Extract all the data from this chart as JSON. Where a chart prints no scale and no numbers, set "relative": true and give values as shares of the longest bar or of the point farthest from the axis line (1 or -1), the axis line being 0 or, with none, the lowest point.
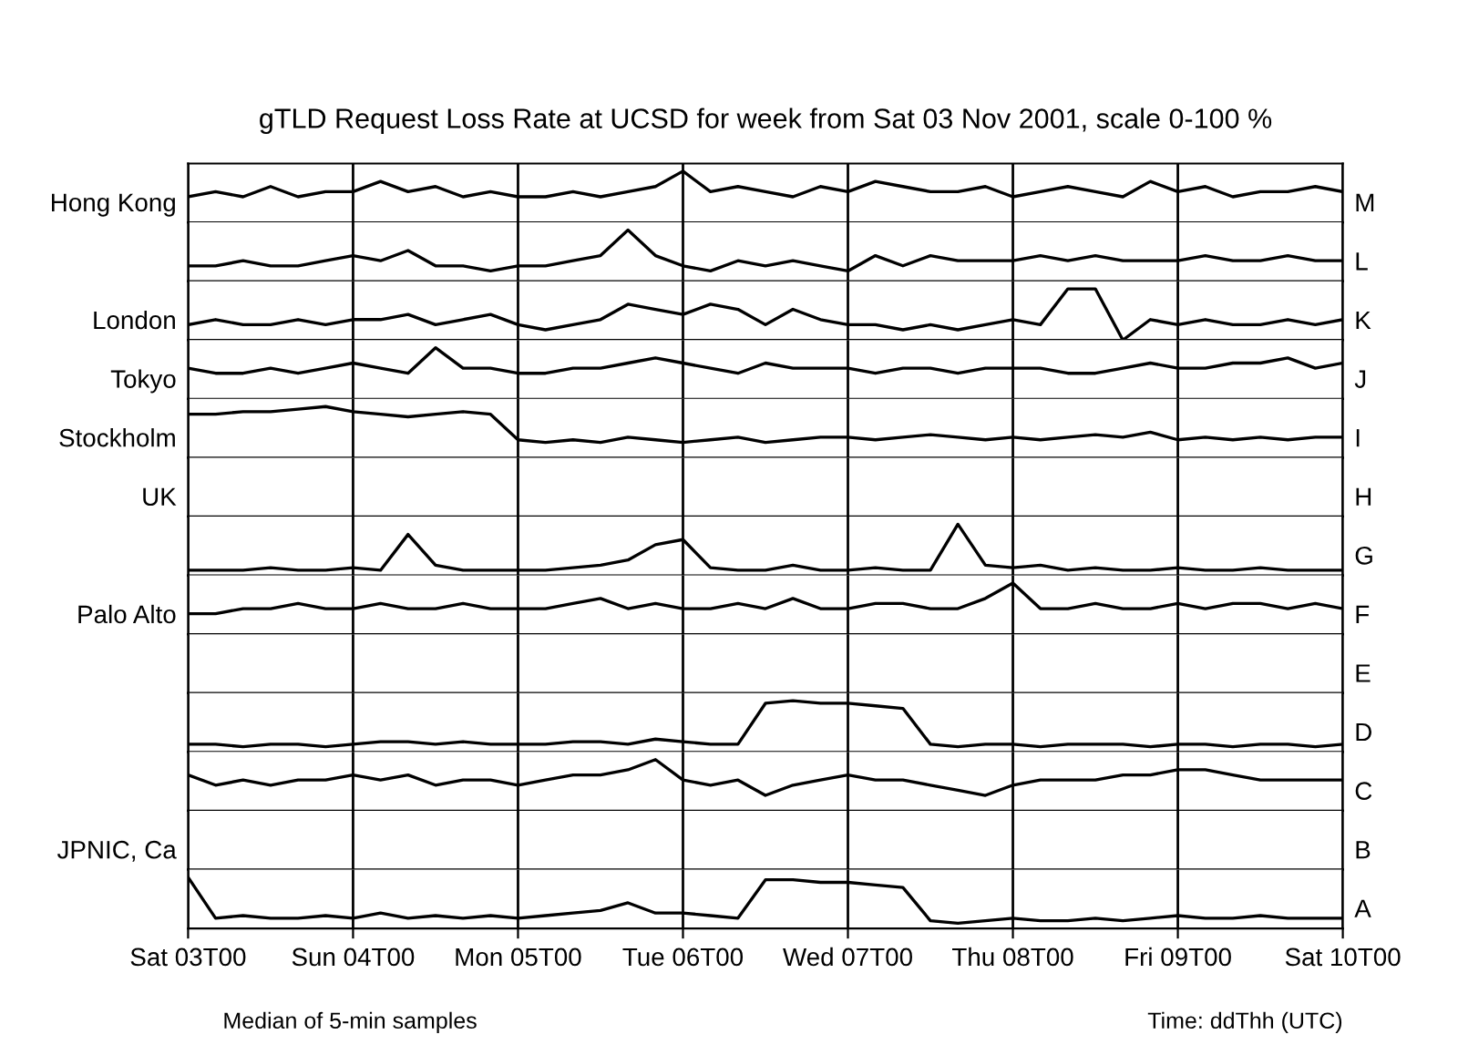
{
  "chart_data": [
    {
      "type": "line",
      "relative": true,
      "title": "gTLD Request Loss Rate at UCSD for week from Sat 03 Nov 2001, scale 0-100 %",
      "ylabel": "Hong Kong",
      "y2label": "M",
      "categories": [
        null,
        null,
        null,
        null,
        null,
        null,
        null,
        null,
        null,
        null,
        null,
        null,
        null,
        null,
        null,
        null,
        null,
        null,
        null,
        null,
        null,
        null,
        null,
        null,
        null,
        null,
        null,
        null,
        null,
        null,
        null,
        null,
        null,
        null,
        null,
        null,
        null,
        null,
        null,
        null,
        null,
        null,
        null
      ],
      "grid": "x",
      "color": "#000000",
      "values": [
        0.5,
        0.6,
        0.5,
        0.7,
        0.5,
        0.6,
        0.6,
        0.8,
        0.6,
        0.7,
        0.5,
        0.6,
        0.5,
        0.5,
        0.6,
        0.5,
        0.6,
        0.7,
        1,
        0.6,
        0.7,
        0.6,
        0.5,
        0.7,
        0.6,
        0.8,
        0.7,
        0.6,
        0.6,
        0.7,
        0.5,
        0.6,
        0.7,
        0.6,
        0.5,
        0.8,
        0.6,
        0.7,
        0.5,
        0.6,
        0.6,
        0.7,
        0.6
      ]
    },
    {
      "type": "line",
      "relative": true,
      "y2label": "L",
      "categories": [
        null,
        null,
        null,
        null,
        null,
        null,
        null,
        null,
        null,
        null,
        null,
        null,
        null,
        null,
        null,
        null,
        null,
        null,
        null,
        null,
        null,
        null,
        null,
        null,
        null,
        null,
        null,
        null,
        null,
        null,
        null,
        null,
        null,
        null,
        null,
        null,
        null,
        null,
        null,
        null,
        null,
        null,
        null
      ],
      "grid": "x",
      "color": "#000000",
      "values": [
        0.3,
        0.3,
        0.4,
        0.3,
        0.3,
        0.4,
        0.5,
        0.4,
        0.6,
        0.3,
        0.3,
        0.2,
        0.3,
        0.3,
        0.4,
        0.5,
        1,
        0.5,
        0.3,
        0.2,
        0.4,
        0.3,
        0.4,
        0.3,
        0.2,
        0.5,
        0.3,
        0.5,
        0.4,
        0.4,
        0.4,
        0.5,
        0.4,
        0.5,
        0.4,
        0.4,
        0.4,
        0.5,
        0.4,
        0.4,
        0.5,
        0.4,
        0.4
      ]
    },
    {
      "type": "line",
      "relative": true,
      "ylabel": "London",
      "y2label": "K",
      "categories": [
        null,
        null,
        null,
        null,
        null,
        null,
        null,
        null,
        null,
        null,
        null,
        null,
        null,
        null,
        null,
        null,
        null,
        null,
        null,
        null,
        null,
        null,
        null,
        null,
        null,
        null,
        null,
        null,
        null,
        null,
        null,
        null,
        null,
        null,
        null,
        null,
        null,
        null,
        null,
        null,
        null,
        null,
        null
      ],
      "grid": "x",
      "color": "#000000",
      "values": [
        0.3,
        0.4,
        0.3,
        0.3,
        0.4,
        0.3,
        0.4,
        0.4,
        0.5,
        0.3,
        0.4,
        0.5,
        0.3,
        0.2,
        0.3,
        0.4,
        0.7,
        0.6,
        0.5,
        0.7,
        0.6,
        0.3,
        0.6,
        0.4,
        0.3,
        0.3,
        0.2,
        0.3,
        0.2,
        0.3,
        0.4,
        0.3,
        1,
        1,
        0,
        0.4,
        0.3,
        0.4,
        0.3,
        0.3,
        0.4,
        0.3,
        0.4
      ]
    },
    {
      "type": "line",
      "relative": true,
      "ylabel": "Tokyo",
      "y2label": "J",
      "categories": [
        null,
        null,
        null,
        null,
        null,
        null,
        null,
        null,
        null,
        null,
        null,
        null,
        null,
        null,
        null,
        null,
        null,
        null,
        null,
        null,
        null,
        null,
        null,
        null,
        null,
        null,
        null,
        null,
        null,
        null,
        null,
        null,
        null,
        null,
        null,
        null,
        null,
        null,
        null,
        null,
        null,
        null,
        null
      ],
      "grid": "x",
      "color": "#000000",
      "values": [
        0.6,
        0.5,
        0.5,
        0.6,
        0.5,
        0.6,
        0.7,
        0.6,
        0.5,
        1,
        0.6,
        0.6,
        0.5,
        0.5,
        0.6,
        0.6,
        0.7,
        0.8,
        0.7,
        0.6,
        0.5,
        0.7,
        0.6,
        0.6,
        0.6,
        0.5,
        0.6,
        0.6,
        0.5,
        0.6,
        0.6,
        0.6,
        0.5,
        0.5,
        0.6,
        0.7,
        0.6,
        0.6,
        0.7,
        0.7,
        0.8,
        0.6,
        0.7
      ]
    },
    {
      "type": "line",
      "relative": true,
      "ylabel": "Stockholm",
      "y2label": "I",
      "categories": [
        null,
        null,
        null,
        null,
        null,
        null,
        null,
        null,
        null,
        null,
        null,
        null,
        null,
        null,
        null,
        null,
        null,
        null,
        null,
        null,
        null,
        null,
        null,
        null,
        null,
        null,
        null,
        null,
        null,
        null,
        null,
        null,
        null,
        null,
        null,
        null,
        null,
        null,
        null,
        null,
        null,
        null,
        null
      ],
      "grid": "x",
      "color": "#000000",
      "values": [
        0.85,
        0.85,
        0.9,
        0.9,
        0.95,
        1,
        0.9,
        0.85,
        0.8,
        0.85,
        0.9,
        0.85,
        0.35,
        0.3,
        0.35,
        0.3,
        0.4,
        0.35,
        0.3,
        0.35,
        0.4,
        0.3,
        0.35,
        0.4,
        0.4,
        0.35,
        0.4,
        0.45,
        0.4,
        0.35,
        0.4,
        0.35,
        0.4,
        0.45,
        0.4,
        0.5,
        0.35,
        0.4,
        0.35,
        0.4,
        0.35,
        0.4,
        0.4
      ]
    },
    {
      "type": "other",
      "ylabel": "UK",
      "y2label": "H"
    },
    {
      "type": "line",
      "relative": true,
      "y2label": "G",
      "categories": [
        null,
        null,
        null,
        null,
        null,
        null,
        null,
        null,
        null,
        null,
        null,
        null,
        null,
        null,
        null,
        null,
        null,
        null,
        null,
        null,
        null,
        null,
        null,
        null,
        null,
        null,
        null,
        null,
        null,
        null,
        null,
        null,
        null,
        null,
        null,
        null,
        null,
        null,
        null,
        null,
        null,
        null,
        null
      ],
      "grid": "x",
      "color": "#000000",
      "values": [
        0.1,
        0.1,
        0.1,
        0.15,
        0.1,
        0.1,
        0.15,
        0.1,
        0.8,
        0.2,
        0.1,
        0.1,
        0.1,
        0.1,
        0.15,
        0.2,
        0.3,
        0.6,
        0.7,
        0.15,
        0.1,
        0.1,
        0.2,
        0.1,
        0.1,
        0.15,
        0.1,
        0.1,
        1,
        0.2,
        0.15,
        0.2,
        0.1,
        0.15,
        0.1,
        0.1,
        0.15,
        0.1,
        0.1,
        0.15,
        0.1,
        0.1,
        0.1
      ]
    },
    {
      "type": "line",
      "relative": true,
      "ylabel": "Palo Alto",
      "y2label": "F",
      "categories": [
        null,
        null,
        null,
        null,
        null,
        null,
        null,
        null,
        null,
        null,
        null,
        null,
        null,
        null,
        null,
        null,
        null,
        null,
        null,
        null,
        null,
        null,
        null,
        null,
        null,
        null,
        null,
        null,
        null,
        null,
        null,
        null,
        null,
        null,
        null,
        null,
        null,
        null,
        null,
        null,
        null,
        null,
        null
      ],
      "grid": "x",
      "color": "#000000",
      "values": [
        0.4,
        0.4,
        0.5,
        0.5,
        0.6,
        0.5,
        0.5,
        0.6,
        0.5,
        0.5,
        0.6,
        0.5,
        0.5,
        0.5,
        0.6,
        0.7,
        0.5,
        0.6,
        0.5,
        0.5,
        0.6,
        0.5,
        0.7,
        0.5,
        0.5,
        0.6,
        0.6,
        0.5,
        0.5,
        0.7,
        1,
        0.5,
        0.5,
        0.6,
        0.5,
        0.5,
        0.6,
        0.5,
        0.6,
        0.6,
        0.5,
        0.6,
        0.5
      ]
    },
    {
      "type": "other",
      "y2label": "E"
    },
    {
      "type": "line",
      "relative": true,
      "y2label": "D",
      "categories": [
        null,
        null,
        null,
        null,
        null,
        null,
        null,
        null,
        null,
        null,
        null,
        null,
        null,
        null,
        null,
        null,
        null,
        null,
        null,
        null,
        null,
        null,
        null,
        null,
        null,
        null,
        null,
        null,
        null,
        null,
        null,
        null,
        null,
        null,
        null,
        null,
        null,
        null,
        null,
        null,
        null,
        null,
        null
      ],
      "grid": "x",
      "color": "#000000",
      "values": [
        0.15,
        0.15,
        0.1,
        0.15,
        0.15,
        0.1,
        0.15,
        0.2,
        0.2,
        0.15,
        0.2,
        0.15,
        0.15,
        0.15,
        0.2,
        0.2,
        0.15,
        0.25,
        0.2,
        0.15,
        0.15,
        0.95,
        1,
        0.95,
        0.95,
        0.9,
        0.85,
        0.15,
        0.1,
        0.15,
        0.15,
        0.1,
        0.15,
        0.15,
        0.15,
        0.1,
        0.15,
        0.15,
        0.1,
        0.15,
        0.15,
        0.1,
        0.15
      ]
    },
    {
      "type": "line",
      "relative": true,
      "y2label": "C",
      "categories": [
        null,
        null,
        null,
        null,
        null,
        null,
        null,
        null,
        null,
        null,
        null,
        null,
        null,
        null,
        null,
        null,
        null,
        null,
        null,
        null,
        null,
        null,
        null,
        null,
        null,
        null,
        null,
        null,
        null,
        null,
        null,
        null,
        null,
        null,
        null,
        null,
        null,
        null,
        null,
        null,
        null,
        null,
        null
      ],
      "grid": "x",
      "color": "#000000",
      "values": [
        0.7,
        0.5,
        0.6,
        0.5,
        0.6,
        0.6,
        0.7,
        0.6,
        0.7,
        0.5,
        0.6,
        0.6,
        0.5,
        0.6,
        0.7,
        0.7,
        0.8,
        1,
        0.6,
        0.5,
        0.6,
        0.3,
        0.5,
        0.6,
        0.7,
        0.6,
        0.6,
        0.5,
        0.4,
        0.3,
        0.5,
        0.6,
        0.6,
        0.6,
        0.7,
        0.7,
        0.8,
        0.8,
        0.7,
        0.6,
        0.6,
        0.6,
        0.6
      ]
    },
    {
      "type": "other",
      "ylabel": "JPNIC, Ca",
      "y2label": "B"
    },
    {
      "type": "line",
      "relative": true,
      "y2label": "A",
      "xlim": [
        "2001-11-03T00:00",
        "2001-11-10T00:00"
      ],
      "grid": "x",
      "color": "#000000",
      "x": [
        "2001-11-03T00:00",
        "2001-11-03T04:00",
        "2001-11-03T08:00",
        "2001-11-03T12:00",
        "2001-11-03T16:00",
        "2001-11-03T20:00",
        "2001-11-04T00:00",
        "2001-11-04T04:00",
        "2001-11-04T08:00",
        "2001-11-04T12:00",
        "2001-11-04T16:00",
        "2001-11-04T20:00",
        "2001-11-05T00:00",
        "2001-11-05T04:00",
        "2001-11-05T08:00",
        "2001-11-05T12:00",
        "2001-11-05T16:00",
        "2001-11-05T20:00",
        "2001-11-06T00:00",
        "2001-11-06T04:00",
        "2001-11-06T08:00",
        "2001-11-06T12:00",
        "2001-11-06T16:00",
        "2001-11-06T20:00",
        "2001-11-07T00:00",
        "2001-11-07T04:00",
        "2001-11-07T08:00",
        "2001-11-07T12:00",
        "2001-11-07T16:00",
        "2001-11-07T20:00",
        "2001-11-08T00:00",
        "2001-11-08T04:00",
        "2001-11-08T08:00",
        "2001-11-08T12:00",
        "2001-11-08T16:00",
        "2001-11-08T20:00",
        "2001-11-09T00:00",
        "2001-11-09T04:00",
        "2001-11-09T08:00",
        "2001-11-09T12:00",
        "2001-11-09T16:00",
        "2001-11-09T20:00",
        "2001-11-10T00:00"
      ],
      "xticks": [
        {
          "value": "2001-11-03T00:00",
          "label": "Sat 03T00"
        },
        {
          "value": "2001-11-04T00:00",
          "label": "Sun 04T00"
        },
        {
          "value": "2001-11-05T00:00",
          "label": "Mon 05T00"
        },
        {
          "value": "2001-11-06T00:00",
          "label": "Tue 06T00"
        },
        {
          "value": "2001-11-07T00:00",
          "label": "Wed 07T00"
        },
        {
          "value": "2001-11-08T00:00",
          "label": "Thu 08T00"
        },
        {
          "value": "2001-11-09T00:00",
          "label": "Fri 09T00"
        },
        {
          "value": "2001-11-10T00:00",
          "label": "Sat 10T00"
        }
      ],
      "annotations": [
        "Median of 5-min samples",
        "Time: ddThh (UTC)"
      ],
      "values": [
        1,
        0.2,
        0.25,
        0.2,
        0.2,
        0.25,
        0.2,
        0.3,
        0.2,
        0.25,
        0.2,
        0.25,
        0.2,
        0.25,
        0.3,
        0.35,
        0.5,
        0.3,
        0.3,
        0.25,
        0.2,
        0.95,
        0.95,
        0.9,
        0.9,
        0.85,
        0.8,
        0.15,
        0.1,
        0.15,
        0.2,
        0.15,
        0.15,
        0.2,
        0.15,
        0.2,
        0.25,
        0.2,
        0.2,
        0.25,
        0.2,
        0.2,
        0.2
      ]
    }
  ]
}
